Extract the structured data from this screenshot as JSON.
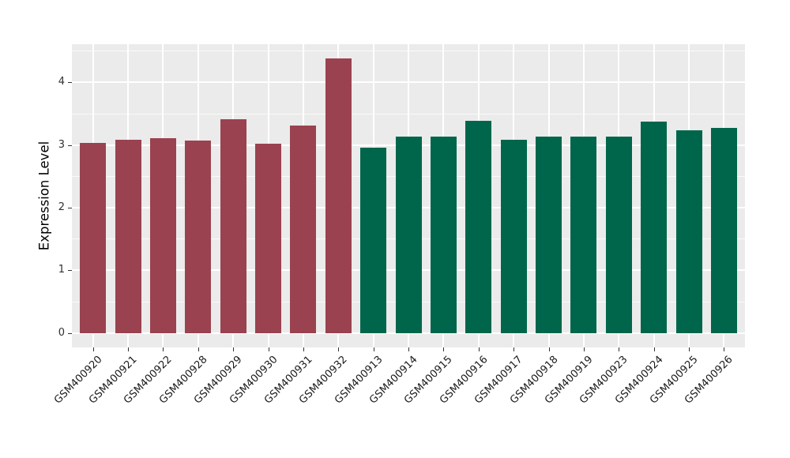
{
  "chart_data": {
    "type": "bar",
    "title": "",
    "xlabel": "",
    "ylabel": "Expression Level",
    "categories": [
      "GSM400920",
      "GSM400921",
      "GSM400922",
      "GSM400928",
      "GSM400929",
      "GSM400930",
      "GSM400931",
      "GSM400932",
      "GSM400913",
      "GSM400914",
      "GSM400915",
      "GSM400916",
      "GSM400917",
      "GSM400918",
      "GSM400919",
      "GSM400923",
      "GSM400924",
      "GSM400925",
      "GSM400926"
    ],
    "values": [
      3.03,
      3.08,
      3.11,
      3.07,
      3.41,
      3.02,
      3.31,
      4.38,
      2.96,
      3.13,
      3.14,
      3.39,
      3.09,
      3.14,
      3.14,
      3.14,
      3.37,
      3.24,
      3.27
    ],
    "bar_colors": [
      "#9A4250",
      "#9A4250",
      "#9A4250",
      "#9A4250",
      "#9A4250",
      "#9A4250",
      "#9A4250",
      "#9A4250",
      "#00664B",
      "#00664B",
      "#00664B",
      "#00664B",
      "#00664B",
      "#00664B",
      "#00664B",
      "#00664B",
      "#00664B",
      "#00664B",
      "#00664B"
    ],
    "group_colors": {
      "maroon": "#9A4250",
      "green": "#00664B"
    },
    "yticks": [
      0,
      1,
      2,
      3,
      4
    ],
    "minor_yticks": [
      0.5,
      1.5,
      2.5,
      3.5,
      4.5
    ],
    "ylim": [
      -0.23,
      4.61
    ],
    "grid": true,
    "legend_position": "none",
    "panel_background": "#EBEBEB",
    "gridline_color": "#FFFFFF",
    "axis_text_color": "#1A1A1A"
  }
}
